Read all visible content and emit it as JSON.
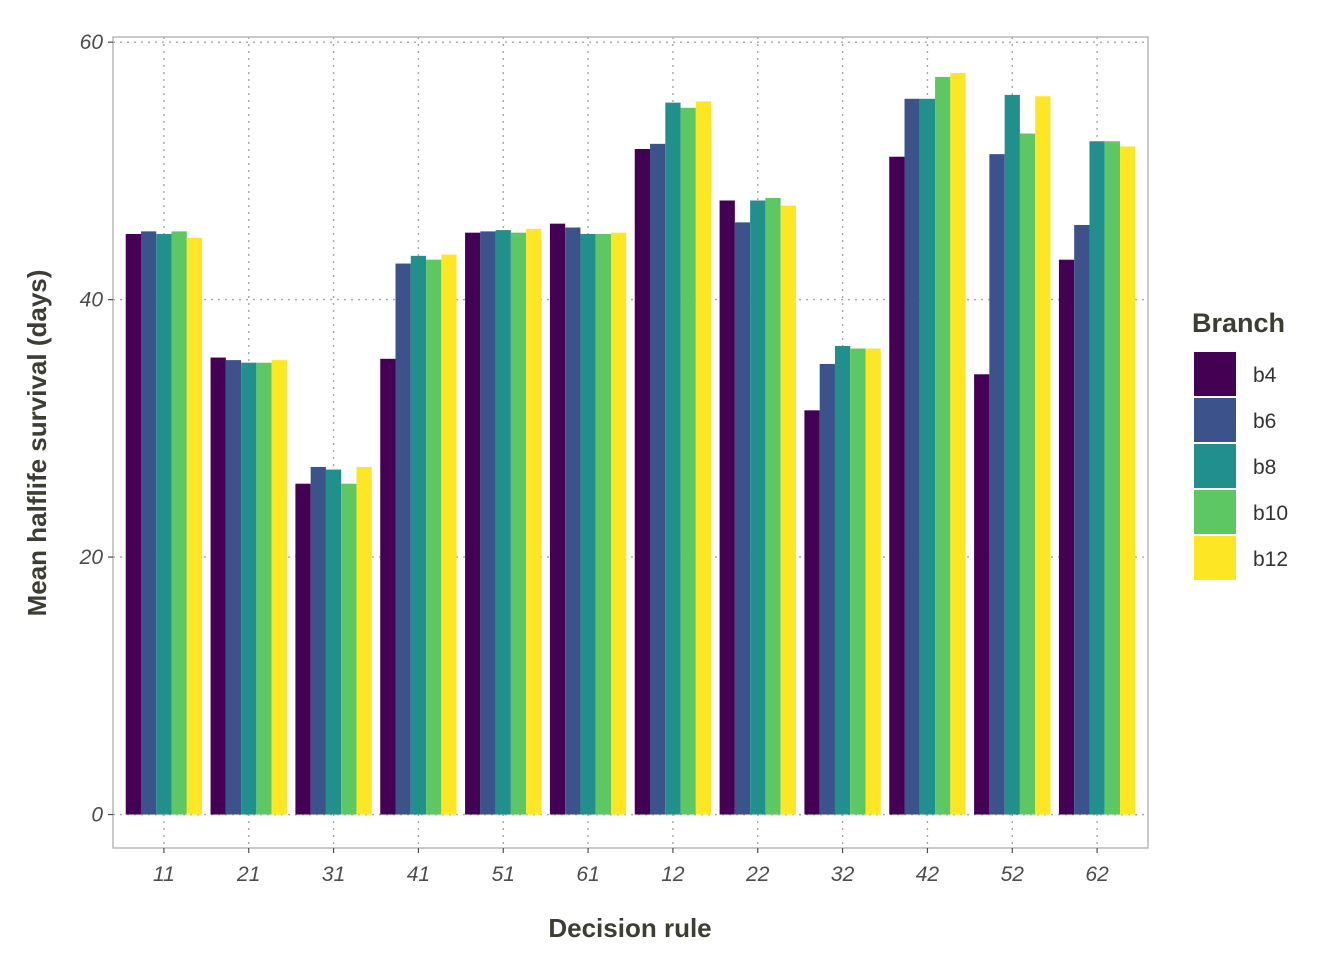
{
  "chart_data": {
    "type": "bar",
    "title": "",
    "xlabel": "Decision rule",
    "ylabel": "Mean halflife survival (days)",
    "categories": [
      "11",
      "21",
      "31",
      "41",
      "51",
      "61",
      "12",
      "22",
      "32",
      "42",
      "52",
      "62"
    ],
    "ylim": [
      -2.6,
      60.4
    ],
    "yticks": [
      0,
      20,
      40,
      60
    ],
    "grid": true,
    "legend": {
      "title": "Branch",
      "position": "right"
    },
    "series": [
      {
        "name": "b4",
        "color": "#440154",
        "values": [
          45.1,
          35.5,
          25.7,
          35.4,
          45.2,
          45.9,
          51.7,
          47.7,
          31.4,
          51.1,
          34.2,
          43.1
        ]
      },
      {
        "name": "b6",
        "color": "#3B528B",
        "values": [
          45.3,
          35.3,
          27.0,
          42.8,
          45.3,
          45.6,
          52.1,
          46.0,
          35.0,
          55.6,
          51.3,
          45.8
        ]
      },
      {
        "name": "b8",
        "color": "#21908C",
        "values": [
          45.1,
          35.1,
          26.8,
          43.4,
          45.4,
          45.1,
          55.3,
          47.7,
          36.4,
          55.6,
          55.9,
          52.3
        ]
      },
      {
        "name": "b10",
        "color": "#5DC863",
        "values": [
          45.3,
          35.1,
          25.7,
          43.1,
          45.2,
          45.1,
          54.9,
          47.9,
          36.2,
          57.3,
          52.9,
          52.3
        ]
      },
      {
        "name": "b12",
        "color": "#FDE725",
        "values": [
          44.8,
          35.3,
          27.0,
          43.5,
          45.5,
          45.2,
          55.4,
          47.3,
          36.2,
          57.6,
          55.8,
          51.9
        ]
      }
    ]
  }
}
